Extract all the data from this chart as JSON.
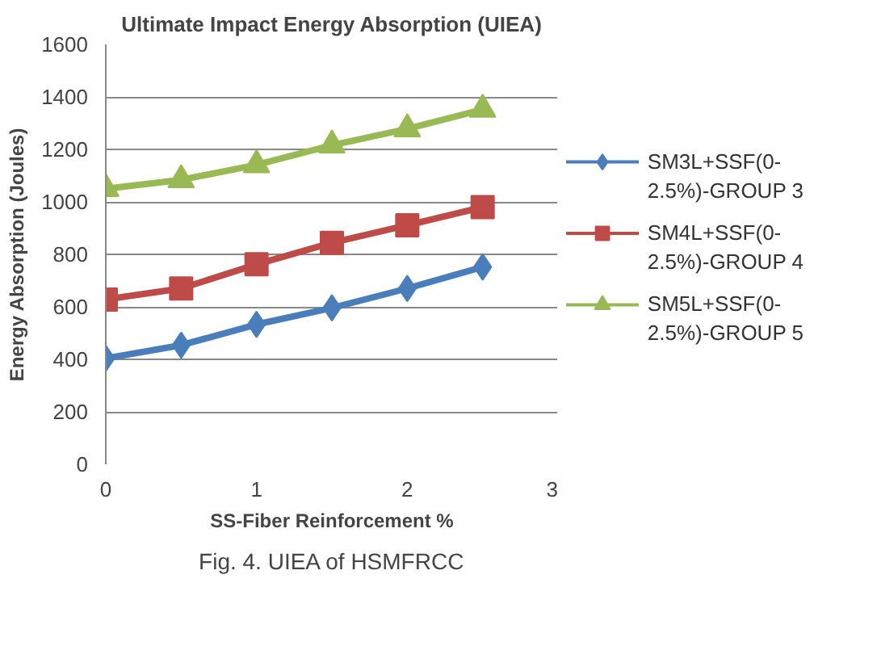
{
  "chart_data": {
    "type": "line",
    "title": "Ultimate Impact Energy Absorption (UIEA)",
    "xlabel": "SS-Fiber Reinforcement %",
    "ylabel": "Energy Absorption (Joules)",
    "x": [
      0,
      0.5,
      1,
      1.5,
      2,
      2.5
    ],
    "series": [
      {
        "name": "SM3L+SSF(0-2.5%)-GROUP 3",
        "color": "#4a7ebb",
        "marker": "diamond",
        "values": [
          404,
          454,
          533,
          596,
          670,
          752
        ]
      },
      {
        "name": "SM4L+SSF(0-2.5%)-GROUP 4",
        "color": "#be4b48",
        "marker": "square",
        "values": [
          628,
          670,
          762,
          844,
          911,
          980
        ]
      },
      {
        "name": "SM5L+SSF(0-2.5%)-GROUP 5",
        "color": "#98b954",
        "marker": "triangle",
        "values": [
          1050,
          1084,
          1141,
          1216,
          1278,
          1352
        ]
      }
    ],
    "xlim": [
      0,
      3
    ],
    "xticks": [
      0,
      1,
      2,
      3
    ],
    "ylim": [
      0,
      1600
    ],
    "yticks": [
      0,
      200,
      400,
      600,
      800,
      1000,
      1200,
      1400,
      1600
    ],
    "grid": "y",
    "legend": "right",
    "annotations": [
      "Fig. 4. UIEA of HSMFRCC"
    ]
  }
}
